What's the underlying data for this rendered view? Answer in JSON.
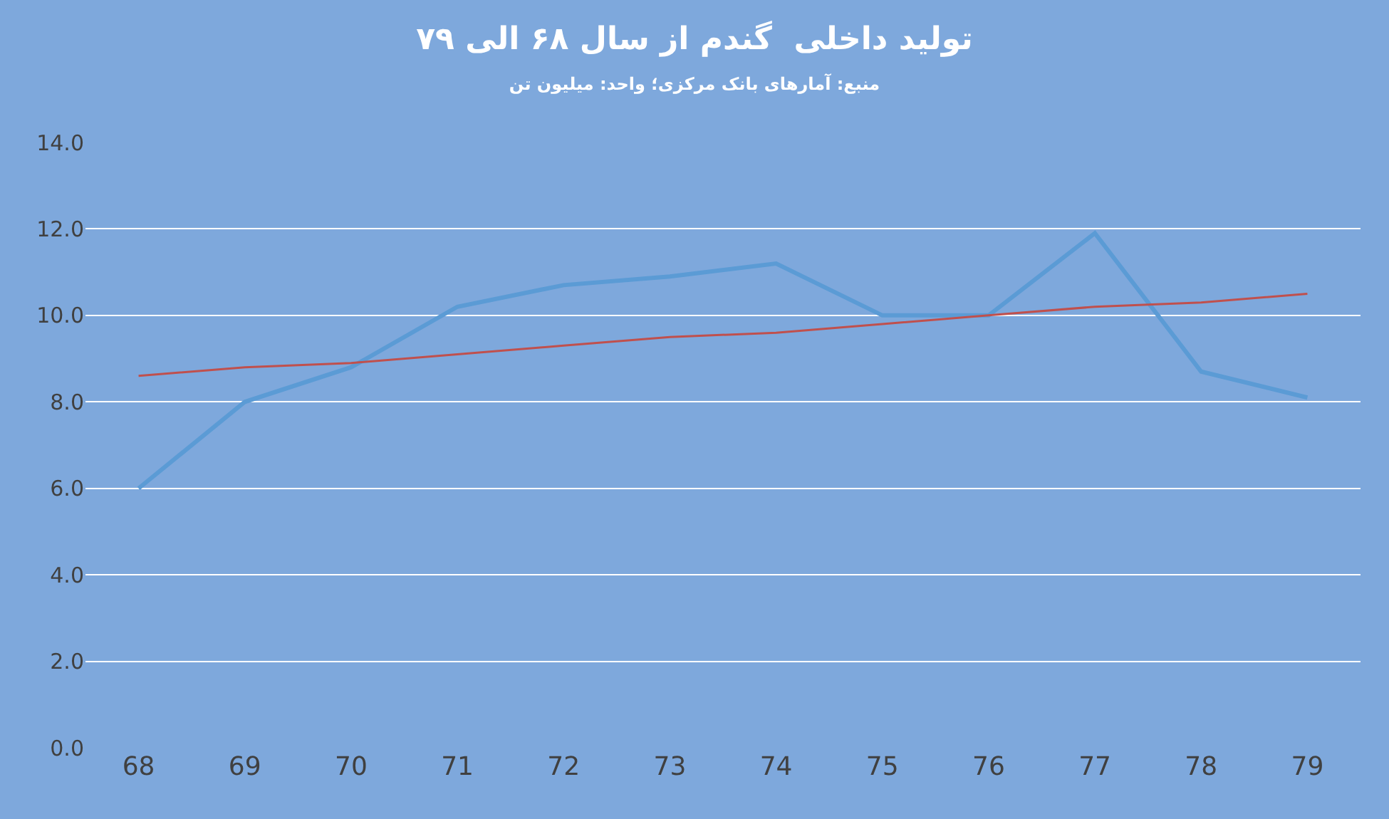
{
  "chart_data": {
    "type": "line",
    "title": "تولید داخلی  گندم از سال ۶۸ الی ۷۹",
    "subtitle": "منبع: آمارهای بانک مرکزی؛ واحد: میلیون تن",
    "categories": [
      "68",
      "69",
      "70",
      "71",
      "72",
      "73",
      "74",
      "75",
      "76",
      "77",
      "78",
      "79"
    ],
    "series": [
      {
        "color": "#5b9bd5",
        "values": [
          6.0,
          8.0,
          8.8,
          10.2,
          10.7,
          10.9,
          11.2,
          10.0,
          10.0,
          11.9,
          8.7,
          8.1
        ]
      },
      {
        "color": "#c0504d",
        "values": [
          8.6,
          8.8,
          8.9,
          9.1,
          9.3,
          9.5,
          9.6,
          9.8,
          10.0,
          10.2,
          10.3,
          10.5
        ]
      }
    ],
    "ylim": [
      0,
      14
    ],
    "yticks": [
      {
        "value": 0,
        "label": "0.0"
      },
      {
        "value": 2,
        "label": "2.0"
      },
      {
        "value": 4,
        "label": "4.0"
      },
      {
        "value": 6,
        "label": "6.0"
      },
      {
        "value": 8,
        "label": "8.0"
      },
      {
        "value": 10,
        "label": "10.0"
      },
      {
        "value": 12,
        "label": "12.0"
      },
      {
        "value": 14,
        "label": "14.0"
      }
    ],
    "grid": "y",
    "marker": "none",
    "line_style": "solid"
  }
}
